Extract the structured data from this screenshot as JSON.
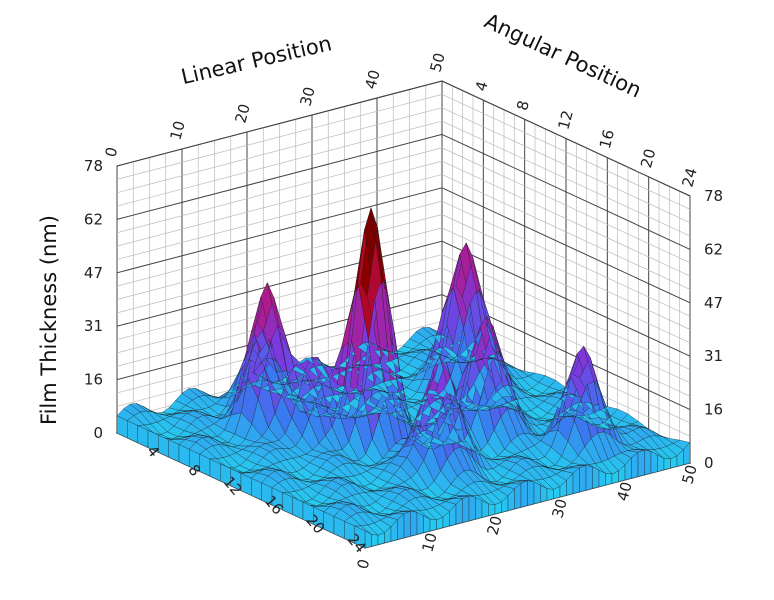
{
  "chart_data": {
    "type": "surface",
    "zlabel": "Film Thickness (nm)",
    "xlabel": "Linear Position",
    "ylabel": "Angular Position",
    "x_range": [
      0,
      50
    ],
    "y_range": [
      0,
      24
    ],
    "z_range": [
      0,
      78
    ],
    "z_ticks": [
      "0",
      "16",
      "31",
      "47",
      "62",
      "78"
    ],
    "linear_ticks": [
      "0",
      "10",
      "20",
      "30",
      "40",
      "50"
    ],
    "angular_ticks": [
      "4",
      "8",
      "12",
      "16",
      "20",
      "24"
    ],
    "grid": true,
    "colormap": [
      "#22e0f0",
      "#3a78f0",
      "#7a3ae0",
      "#b01a8a",
      "#b00000",
      "#300000"
    ],
    "peaks": [
      {
        "x": 20,
        "y": 12,
        "z": 68
      },
      {
        "x": 33,
        "y": 15,
        "z": 35
      },
      {
        "x": 12,
        "y": 7,
        "z": 40
      },
      {
        "x": 21,
        "y": 18,
        "z": 34
      },
      {
        "x": 41,
        "y": 8,
        "z": 42
      },
      {
        "x": 16,
        "y": 4,
        "z": 20
      },
      {
        "x": 40,
        "y": 20,
        "z": 28
      },
      {
        "x": 14,
        "y": 10,
        "z": 22
      }
    ]
  }
}
